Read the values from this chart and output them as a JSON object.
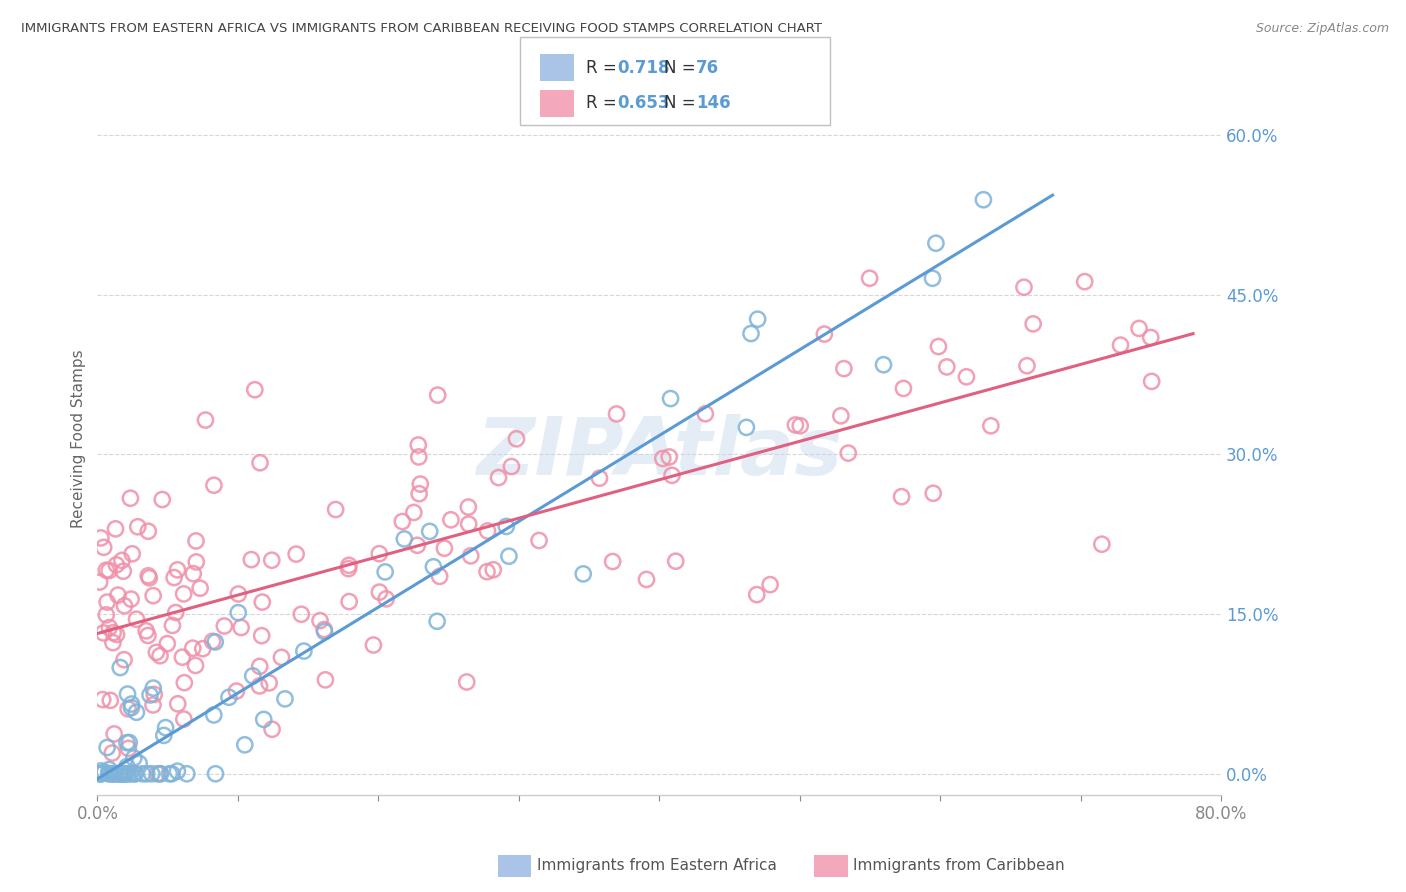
{
  "title": "IMMIGRANTS FROM EASTERN AFRICA VS IMMIGRANTS FROM CARIBBEAN RECEIVING FOOD STAMPS CORRELATION CHART",
  "source": "Source: ZipAtlas.com",
  "ylabel": "Receiving Food Stamps",
  "xlim": [
    0.0,
    0.8
  ],
  "ylim": [
    -0.02,
    0.65
  ],
  "y_ticks": [
    0.0,
    0.15,
    0.3,
    0.45,
    0.6
  ],
  "legend": {
    "series1_label": "Immigrants from Eastern Africa",
    "series2_label": "Immigrants from Caribbean",
    "series1_R": "0.718",
    "series1_N": "76",
    "series2_R": "0.653",
    "series2_N": "146",
    "series1_patch_color": "#aac4e8",
    "series2_patch_color": "#f4a8bc"
  },
  "series1_color": "#7fb3d9",
  "series2_color": "#f090a8",
  "trendline1_color": "#5b9bd5",
  "trendline2_color": "#e06080",
  "watermark": "ZIPAtlas",
  "background_color": "#ffffff",
  "grid_color": "#cccccc",
  "title_color": "#444444",
  "axis_label_color": "#5b9bd5",
  "right_tick_color": "#5b9bd5",
  "ylabel_color": "#666666",
  "bottom_tick_color": "#888888",
  "source_color": "#888888",
  "legend_text_color": "#333333",
  "legend_value_color": "#5b9bd5"
}
